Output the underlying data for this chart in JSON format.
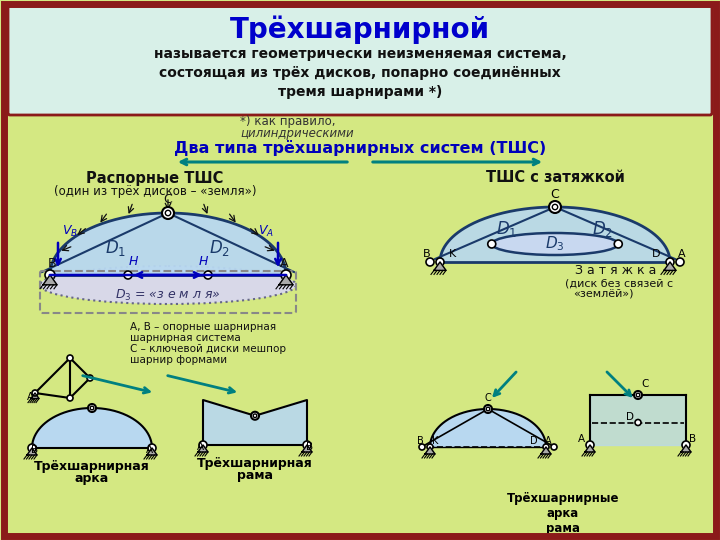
{
  "bg_outer": "#d4e882",
  "bg_header": "#d8f0e8",
  "border_outer": "#8b1a1a",
  "border_header": "#8b1a1a",
  "title_text": "Трёхшарнирной",
  "title_color": "#0000cc",
  "sub1": "называется геометрически неизменяемая система,",
  "sub2": "состоящая из трёх дисков, попарно соединённых",
  "sub3": "тремя шарнирами *)",
  "note1": "*) как правило,",
  "note2": "цилиндрическими",
  "two_types": "Два типа трёхшарнирных систем (ТШС)",
  "left_title": "Распорные ТШС",
  "left_sub": "(один из трёх дисков – «земля»)",
  "right_title": "ТШС с затяжкой",
  "d3_label": "D_3 = «з е м л я»",
  "zatjazka": "З а т я ж к а",
  "zatjazka_sub1": "(диск без связей с",
  "zatjazka_sub2": "«землёй»)",
  "leg1": "A, B – опорные шарнирная",
  "leg2": "шарнирная система",
  "leg3": "C – ключевой диски мешпор",
  "leg4": "шарнир формами",
  "bl1": "Трёхшарнирная",
  "bl1b": "арка",
  "bl2": "Трёхшарнирная",
  "bl2b": "рама",
  "br": "Трёхшарнирные\nарка\nрама\nс затяжками",
  "disk_fill": "#b8d8f0",
  "disk_fill2": "#c0ddf5",
  "disk_edge": "#1a3a6a",
  "ground_col": "#aaaaaa",
  "arrow_teal": "#008080",
  "blue_dark": "#0000bb",
  "text_black": "#000000"
}
